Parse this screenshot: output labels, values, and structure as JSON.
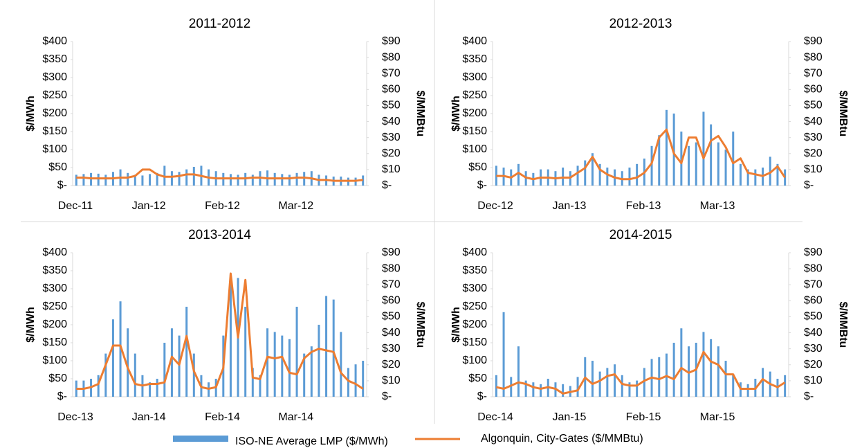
{
  "chart_data": [
    {
      "type": "bar",
      "title": "2011-2012",
      "ylabel": "$/MWh",
      "y2label": "$/MMBtu",
      "categories": [
        "Dec-11",
        null,
        null,
        null,
        null,
        null,
        null,
        null,
        null,
        null,
        "Jan-12",
        null,
        null,
        null,
        null,
        null,
        null,
        null,
        null,
        null,
        "Feb-12",
        null,
        null,
        null,
        null,
        null,
        null,
        null,
        null,
        null,
        "Mar-12",
        null,
        null,
        null,
        null,
        null,
        null,
        null,
        null,
        null
      ],
      "series": [
        {
          "name": "ISO-NE Average LMP ($/MWh)",
          "color": "#5b9bd5",
          "values": [
            30,
            32,
            35,
            33,
            30,
            38,
            45,
            35,
            30,
            28,
            32,
            35,
            55,
            40,
            38,
            45,
            52,
            55,
            45,
            40,
            35,
            32,
            30,
            35,
            30,
            40,
            42,
            35,
            32,
            30,
            35,
            38,
            40,
            30,
            28,
            25,
            25,
            22,
            22,
            28
          ]
        },
        {
          "name": "Algonquin, City-Gates ($/MMBtu)",
          "color": "#ed7d31",
          "axis": "y2",
          "values": [
            5,
            5,
            4.5,
            4.5,
            4.5,
            4.5,
            5,
            5,
            6,
            10,
            10,
            7,
            5.5,
            5.5,
            6,
            7,
            7,
            6,
            5,
            4.5,
            4.5,
            4.5,
            4.5,
            4.5,
            5,
            5,
            4.5,
            4.5,
            4.5,
            4.5,
            5,
            5,
            4.5,
            3.5,
            3.5,
            3,
            3,
            3,
            3,
            3.5
          ]
        }
      ],
      "ylim": [
        0,
        400
      ],
      "yticks": [
        {
          "value": 0,
          "label": "$-"
        },
        {
          "value": 50,
          "label": "$50"
        },
        {
          "value": 100,
          "label": "$100"
        },
        {
          "value": 150,
          "label": "$150"
        },
        {
          "value": 200,
          "label": "$200"
        },
        {
          "value": 250,
          "label": "$250"
        },
        {
          "value": 300,
          "label": "$300"
        },
        {
          "value": 350,
          "label": "$350"
        },
        {
          "value": 400,
          "label": "$400"
        }
      ],
      "y2lim": [
        0,
        90
      ],
      "y2ticks": [
        {
          "value": 0,
          "label": "$-"
        },
        {
          "value": 10,
          "label": "$10"
        },
        {
          "value": 20,
          "label": "$20"
        },
        {
          "value": 30,
          "label": "$30"
        },
        {
          "value": 40,
          "label": "$40"
        },
        {
          "value": 50,
          "label": "$50"
        },
        {
          "value": 60,
          "label": "$60"
        },
        {
          "value": 70,
          "label": "$70"
        },
        {
          "value": 80,
          "label": "$80"
        },
        {
          "value": 90,
          "label": "$90"
        }
      ]
    },
    {
      "type": "bar",
      "title": "2012-2013",
      "ylabel": "$/MWh",
      "y2label": "$/MMBtu",
      "categories": [
        "Dec-12",
        null,
        null,
        null,
        null,
        null,
        null,
        null,
        null,
        null,
        "Jan-13",
        null,
        null,
        null,
        null,
        null,
        null,
        null,
        null,
        null,
        "Feb-13",
        null,
        null,
        null,
        null,
        null,
        null,
        null,
        null,
        null,
        "Mar-13",
        null,
        null,
        null,
        null,
        null,
        null,
        null,
        null,
        null
      ],
      "series": [
        {
          "color": "#5b9bd5",
          "values": [
            55,
            50,
            45,
            60,
            40,
            35,
            45,
            45,
            40,
            50,
            40,
            55,
            70,
            90,
            60,
            50,
            45,
            40,
            50,
            60,
            75,
            110,
            140,
            210,
            200,
            150,
            110,
            120,
            205,
            170,
            120,
            100,
            150,
            60,
            45,
            45,
            50,
            80,
            60,
            45
          ]
        },
        {
          "color": "#ed7d31",
          "axis": "y2",
          "values": [
            6,
            6,
            5,
            8,
            5,
            4,
            5,
            5,
            4.5,
            5,
            5,
            8,
            11,
            18,
            10,
            7,
            5,
            4,
            4,
            5,
            8,
            14,
            30,
            35,
            20,
            14,
            30,
            30,
            17,
            28,
            31,
            24,
            14,
            17,
            8,
            7,
            6,
            8,
            12,
            5
          ]
        }
      ],
      "ylim": [
        0,
        400
      ],
      "yticks": [
        {
          "value": 0,
          "label": "$-"
        },
        {
          "value": 50,
          "label": "$50"
        },
        {
          "value": 100,
          "label": "$100"
        },
        {
          "value": 150,
          "label": "$150"
        },
        {
          "value": 200,
          "label": "$200"
        },
        {
          "value": 250,
          "label": "$250"
        },
        {
          "value": 300,
          "label": "$300"
        },
        {
          "value": 350,
          "label": "$350"
        },
        {
          "value": 400,
          "label": "$400"
        }
      ],
      "y2lim": [
        0,
        90
      ],
      "y2ticks": [
        {
          "value": 0,
          "label": "$-"
        },
        {
          "value": 10,
          "label": "$10"
        },
        {
          "value": 20,
          "label": "$20"
        },
        {
          "value": 30,
          "label": "$30"
        },
        {
          "value": 40,
          "label": "$40"
        },
        {
          "value": 50,
          "label": "$50"
        },
        {
          "value": 60,
          "label": "$60"
        },
        {
          "value": 70,
          "label": "$70"
        },
        {
          "value": 80,
          "label": "$80"
        },
        {
          "value": 90,
          "label": "$90"
        }
      ]
    },
    {
      "type": "bar",
      "title": "2013-2014",
      "ylabel": "$/MWh",
      "y2label": "$/MMBtu",
      "categories": [
        "Dec-13",
        null,
        null,
        null,
        null,
        null,
        null,
        null,
        null,
        null,
        "Jan-14",
        null,
        null,
        null,
        null,
        null,
        null,
        null,
        null,
        null,
        "Feb-14",
        null,
        null,
        null,
        null,
        null,
        null,
        null,
        null,
        null,
        "Mar-14",
        null,
        null,
        null,
        null,
        null,
        null,
        null,
        null,
        null
      ],
      "series": [
        {
          "color": "#5b9bd5",
          "values": [
            45,
            45,
            50,
            60,
            120,
            215,
            265,
            190,
            120,
            60,
            40,
            50,
            150,
            190,
            170,
            250,
            120,
            60,
            40,
            50,
            170,
            340,
            330,
            250,
            80,
            60,
            190,
            180,
            170,
            160,
            250,
            120,
            140,
            200,
            280,
            270,
            180,
            80,
            90,
            100
          ]
        },
        {
          "color": "#ed7d31",
          "axis": "y2",
          "values": [
            5,
            5,
            6,
            8,
            20,
            32,
            32,
            18,
            8,
            7,
            8,
            8,
            9,
            25,
            20,
            38,
            16,
            6,
            5,
            6,
            18,
            77,
            37,
            73,
            12,
            11,
            25,
            24,
            25,
            15,
            14,
            24,
            28,
            30,
            29,
            28,
            15,
            10,
            8,
            5
          ]
        }
      ],
      "ylim": [
        0,
        400
      ],
      "yticks": [
        {
          "value": 0,
          "label": "$-"
        },
        {
          "value": 50,
          "label": "$50"
        },
        {
          "value": 100,
          "label": "$100"
        },
        {
          "value": 150,
          "label": "$150"
        },
        {
          "value": 200,
          "label": "$200"
        },
        {
          "value": 250,
          "label": "$250"
        },
        {
          "value": 300,
          "label": "$300"
        },
        {
          "value": 350,
          "label": "$350"
        },
        {
          "value": 400,
          "label": "$400"
        }
      ],
      "y2lim": [
        0,
        90
      ],
      "y2ticks": [
        {
          "value": 0,
          "label": "$-"
        },
        {
          "value": 10,
          "label": "$10"
        },
        {
          "value": 20,
          "label": "$20"
        },
        {
          "value": 30,
          "label": "$30"
        },
        {
          "value": 40,
          "label": "$40"
        },
        {
          "value": 50,
          "label": "$50"
        },
        {
          "value": 60,
          "label": "$60"
        },
        {
          "value": 70,
          "label": "$70"
        },
        {
          "value": 80,
          "label": "$80"
        },
        {
          "value": 90,
          "label": "$90"
        }
      ]
    },
    {
      "type": "bar",
      "title": "2014-2015",
      "ylabel": "$/MWh",
      "y2label": "$/MMBtu",
      "categories": [
        "Dec-14",
        null,
        null,
        null,
        null,
        null,
        null,
        null,
        null,
        null,
        "Jan-15",
        null,
        null,
        null,
        null,
        null,
        null,
        null,
        null,
        null,
        "Feb-15",
        null,
        null,
        null,
        null,
        null,
        null,
        null,
        null,
        null,
        "Mar-15",
        null,
        null,
        null,
        null,
        null,
        null,
        null,
        null,
        null
      ],
      "series": [
        {
          "color": "#5b9bd5",
          "values": [
            60,
            235,
            55,
            140,
            45,
            40,
            35,
            50,
            40,
            35,
            30,
            55,
            110,
            100,
            70,
            80,
            90,
            60,
            40,
            45,
            80,
            105,
            110,
            120,
            150,
            190,
            140,
            150,
            180,
            160,
            140,
            100,
            60,
            40,
            35,
            50,
            80,
            70,
            50,
            60
          ]
        },
        {
          "color": "#ed7d31",
          "axis": "y2",
          "values": [
            6,
            5,
            7,
            9,
            8,
            6,
            5,
            6,
            5,
            2,
            3,
            4,
            12,
            8,
            10,
            13,
            14,
            8,
            7,
            7,
            10,
            12,
            11,
            13,
            11,
            18,
            15,
            17,
            28,
            22,
            20,
            14,
            14,
            5,
            5,
            5,
            11,
            8,
            6,
            9
          ]
        }
      ],
      "ylim": [
        0,
        400
      ],
      "yticks": [
        {
          "value": 0,
          "label": "$-"
        },
        {
          "value": 50,
          "label": "$50"
        },
        {
          "value": 100,
          "label": "$100"
        },
        {
          "value": 150,
          "label": "$150"
        },
        {
          "value": 200,
          "label": "$200"
        },
        {
          "value": 250,
          "label": "$250"
        },
        {
          "value": 300,
          "label": "$300"
        },
        {
          "value": 350,
          "label": "$350"
        },
        {
          "value": 400,
          "label": "$400"
        }
      ],
      "y2lim": [
        0,
        90
      ],
      "y2ticks": [
        {
          "value": 0,
          "label": "$-"
        },
        {
          "value": 10,
          "label": "$10"
        },
        {
          "value": 20,
          "label": "$20"
        },
        {
          "value": 30,
          "label": "$30"
        },
        {
          "value": 40,
          "label": "$40"
        },
        {
          "value": 50,
          "label": "$50"
        },
        {
          "value": 60,
          "label": "$60"
        },
        {
          "value": 70,
          "label": "$70"
        },
        {
          "value": 80,
          "label": "$80"
        },
        {
          "value": 90,
          "label": "$90"
        }
      ]
    }
  ]
}
